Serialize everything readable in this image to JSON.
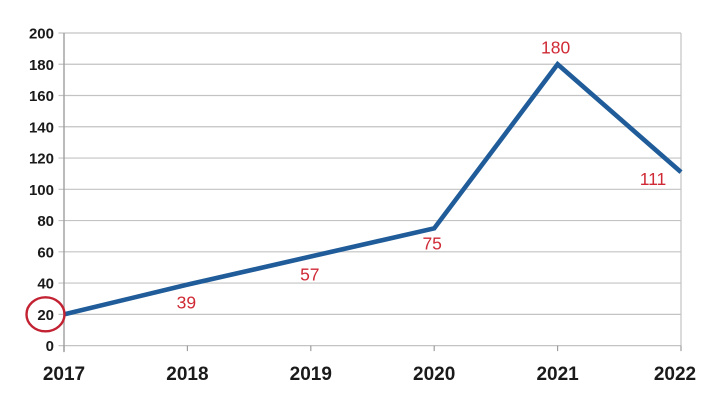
{
  "chart_data": {
    "type": "line",
    "title": "",
    "xlabel": "",
    "ylabel": "",
    "categories": [
      "2017",
      "2018",
      "2019",
      "2020",
      "2021",
      "2022"
    ],
    "values": [
      20,
      39,
      57,
      75,
      180,
      111
    ],
    "series": [
      {
        "name": "values-by-year",
        "values": [
          20,
          39,
          57,
          75,
          180,
          111
        ]
      }
    ],
    "y_ticks": [
      0,
      20,
      40,
      60,
      80,
      100,
      120,
      140,
      160,
      180,
      200
    ],
    "ylim": [
      0,
      200
    ],
    "grid": true,
    "legend_position": "none",
    "data_labels_shown": [
      "39",
      "57",
      "75",
      "180",
      "111"
    ],
    "label_offsets": [
      null,
      [
        -1,
        24
      ],
      [
        -1,
        24
      ],
      [
        -2,
        21
      ],
      [
        -2,
        -11
      ],
      [
        -28,
        13
      ]
    ],
    "annotation": {
      "type": "circle-highlight",
      "target": "y-axis-tick-label-20",
      "text": "20",
      "color": "#c22232"
    },
    "colors": {
      "line": "#1f5c99",
      "data_label": "#cf2a35",
      "grid": "#c3c3c3",
      "axis": "#9e9e9e",
      "tick_label": "#1a1a1a",
      "background": "#ffffff"
    }
  }
}
